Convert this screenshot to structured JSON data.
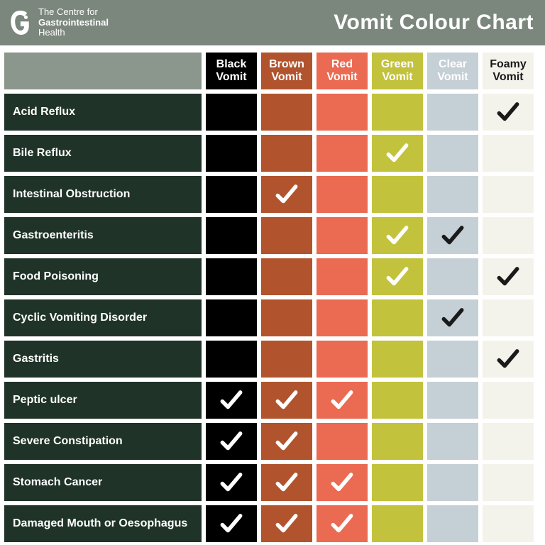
{
  "header": {
    "logo_line1": "The Centre for",
    "logo_line2": "Gastrointestinal",
    "logo_line3": "Health",
    "title": "Vomit Colour Chart"
  },
  "layout": {
    "label_col_width": 278,
    "data_col_width": 72,
    "header_row_height": 52,
    "data_row_height": 52,
    "gap": 6
  },
  "columns": [
    {
      "label": "Black\nVomit",
      "cell_color": "#000000",
      "header_bg": "#000000",
      "check_color": "#ffffff"
    },
    {
      "label": "Brown\nVomit",
      "cell_color": "#b1542e",
      "header_bg": "#b1542e",
      "check_color": "#ffffff"
    },
    {
      "label": "Red\nVomit",
      "cell_color": "#ea6a52",
      "header_bg": "#ea6a52",
      "check_color": "#ffffff"
    },
    {
      "label": "Green\nVomit",
      "cell_color": "#c2c23c",
      "header_bg": "#c2c23c",
      "check_color": "#ffffff"
    },
    {
      "label": "Clear\nVomit",
      "cell_color": "#c5cfd6",
      "header_bg": "#c5cfd6",
      "check_color": "#1a1a1a"
    },
    {
      "label": "Foamy\nVomit",
      "cell_color": "#f4f3eb",
      "header_bg": "#f4f3eb",
      "check_color": "#1a1a1a",
      "header_text_color": "#1a1a1a"
    }
  ],
  "rows": [
    {
      "label": "Acid Reflux",
      "checks": [
        false,
        false,
        false,
        false,
        false,
        true
      ]
    },
    {
      "label": "Bile Reflux",
      "checks": [
        false,
        false,
        false,
        true,
        false,
        false
      ]
    },
    {
      "label": "Intestinal Obstruction",
      "checks": [
        false,
        true,
        false,
        false,
        false,
        false
      ]
    },
    {
      "label": "Gastroenteritis",
      "checks": [
        false,
        false,
        false,
        true,
        true,
        false
      ]
    },
    {
      "label": "Food Poisoning",
      "checks": [
        false,
        false,
        false,
        true,
        false,
        true
      ]
    },
    {
      "label": "Cyclic Vomiting Disorder",
      "checks": [
        false,
        false,
        false,
        false,
        true,
        false
      ]
    },
    {
      "label": "Gastritis",
      "checks": [
        false,
        false,
        false,
        false,
        false,
        true
      ]
    },
    {
      "label": "Peptic ulcer",
      "checks": [
        true,
        true,
        true,
        false,
        false,
        false
      ]
    },
    {
      "label": "Severe Constipation",
      "checks": [
        true,
        true,
        false,
        false,
        false,
        false
      ]
    },
    {
      "label": "Stomach Cancer",
      "checks": [
        true,
        true,
        true,
        false,
        false,
        false
      ]
    },
    {
      "label": "Damaged Mouth or Oesophagus",
      "checks": [
        true,
        true,
        true,
        false,
        false,
        false
      ]
    }
  ],
  "colors": {
    "header_bg": "#7b867c",
    "blank_th_bg": "#8b968c",
    "row_label_bg": "#1f3328",
    "page_bg": "#ffffff"
  }
}
